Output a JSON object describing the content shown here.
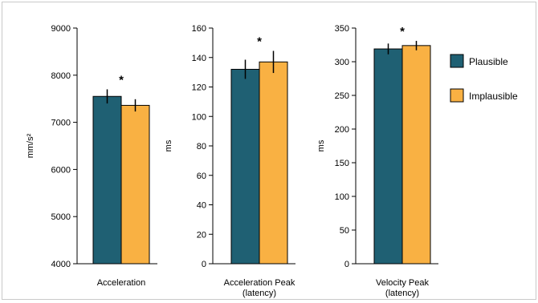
{
  "colors": {
    "plausible": "#1f6073",
    "implausible": "#f9b143",
    "axis": "#000000",
    "error": "#000000"
  },
  "legend": {
    "position": "right",
    "items": [
      {
        "label": "Plausible",
        "color": "#1f6073"
      },
      {
        "label": "Implausible",
        "color": "#f9b143"
      }
    ]
  },
  "chart_data": [
    {
      "type": "bar",
      "title": "",
      "categories": [
        "Acceleration"
      ],
      "xlabel_lines": [
        "Acceleration"
      ],
      "ylabel": "mm/s²",
      "ylim": [
        4000,
        9000
      ],
      "yticks": [
        4000,
        5000,
        6000,
        7000,
        8000,
        9000
      ],
      "series": [
        {
          "name": "Plausible",
          "values": [
            7550
          ],
          "error": [
            150
          ]
        },
        {
          "name": "Implausible",
          "values": [
            7360
          ],
          "error": [
            130
          ]
        }
      ],
      "annotation": "*",
      "grid": false
    },
    {
      "type": "bar",
      "title": "",
      "categories": [
        "Acceleration Peak (latency)"
      ],
      "xlabel_lines": [
        "Acceleration Peak",
        "(latency)"
      ],
      "ylabel": "ms",
      "ylim": [
        0,
        160
      ],
      "yticks": [
        0,
        20,
        40,
        60,
        80,
        100,
        120,
        140,
        160
      ],
      "series": [
        {
          "name": "Plausible",
          "values": [
            132
          ],
          "error": [
            6.5
          ]
        },
        {
          "name": "Implausible",
          "values": [
            137
          ],
          "error": [
            7.5
          ]
        }
      ],
      "annotation": "*",
      "grid": false
    },
    {
      "type": "bar",
      "title": "",
      "categories": [
        "Velocity Peak (latency)"
      ],
      "xlabel_lines": [
        "Velocity Peak",
        "(latency)"
      ],
      "ylabel": "ms",
      "ylim": [
        0,
        350
      ],
      "yticks": [
        0,
        50,
        100,
        150,
        200,
        250,
        300,
        350
      ],
      "series": [
        {
          "name": "Plausible",
          "values": [
            319
          ],
          "error": [
            8
          ]
        },
        {
          "name": "Implausible",
          "values": [
            324
          ],
          "error": [
            7
          ]
        }
      ],
      "annotation": "*",
      "grid": false
    }
  ]
}
